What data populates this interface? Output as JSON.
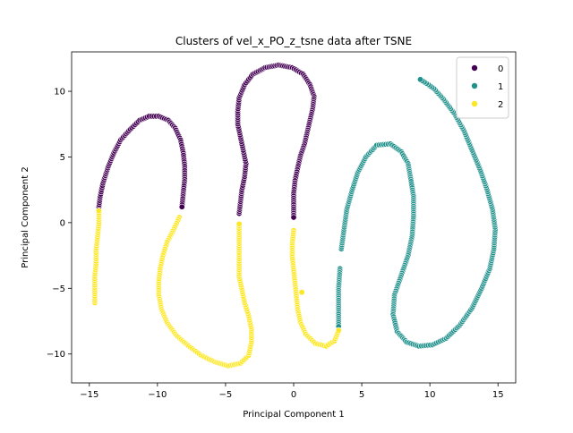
{
  "chart_data": {
    "type": "scatter",
    "title": "Clusters of vel_x_PO_z_tsne data after TSNE",
    "xlabel": "Principal Component 1",
    "ylabel": "Principal Component 2",
    "xlim": [
      -16.3,
      16.3
    ],
    "ylim": [
      -12.2,
      13.0
    ],
    "x_ticks": [
      -15,
      -10,
      -5,
      0,
      5,
      10,
      15
    ],
    "y_ticks": [
      -10,
      -5,
      0,
      5,
      10
    ],
    "grid": false,
    "legend_placement": "top-right",
    "colors": {
      "0": "#440154",
      "1": "#21918c",
      "2": "#fde725"
    },
    "series": [
      {
        "name": "0",
        "color": "#440154",
        "points": [
          [
            -14.3,
            1.2
          ],
          [
            -14.2,
            2.0
          ],
          [
            -14.0,
            3.0
          ],
          [
            -13.6,
            4.3
          ],
          [
            -13.2,
            5.3
          ],
          [
            -12.7,
            6.3
          ],
          [
            -12.0,
            7.1
          ],
          [
            -11.3,
            7.8
          ],
          [
            -10.6,
            8.1
          ],
          [
            -9.9,
            8.1
          ],
          [
            -9.2,
            7.8
          ],
          [
            -8.7,
            7.2
          ],
          [
            -8.3,
            6.3
          ],
          [
            -8.1,
            5.3
          ],
          [
            -8.0,
            4.3
          ],
          [
            -8.0,
            3.3
          ],
          [
            -8.1,
            2.3
          ],
          [
            -8.2,
            1.2
          ],
          [
            -4.0,
            0.7
          ],
          [
            -3.9,
            1.6
          ],
          [
            -3.8,
            2.5
          ],
          [
            -3.6,
            3.5
          ],
          [
            -3.5,
            4.5
          ],
          [
            -3.7,
            5.5
          ],
          [
            -3.9,
            6.5
          ],
          [
            -4.1,
            7.5
          ],
          [
            -4.1,
            8.5
          ],
          [
            -4.0,
            9.5
          ],
          [
            -3.6,
            10.5
          ],
          [
            -3.0,
            11.3
          ],
          [
            -2.1,
            11.8
          ],
          [
            -1.1,
            12.0
          ],
          [
            -0.1,
            11.8
          ],
          [
            0.7,
            11.3
          ],
          [
            1.2,
            10.5
          ],
          [
            1.5,
            9.6
          ],
          [
            1.4,
            8.7
          ],
          [
            1.2,
            7.8
          ],
          [
            1.0,
            6.9
          ],
          [
            0.8,
            6.0
          ],
          [
            0.5,
            5.1
          ],
          [
            0.3,
            4.2
          ],
          [
            0.1,
            3.2
          ],
          [
            0.0,
            2.2
          ],
          [
            0.0,
            1.2
          ],
          [
            0.0,
            0.4
          ]
        ]
      },
      {
        "name": "1",
        "color": "#21918c",
        "points": [
          [
            3.4,
            -3.5
          ],
          [
            3.3,
            -5.0
          ],
          [
            3.3,
            -6.5
          ],
          [
            3.3,
            -7.9
          ],
          [
            3.5,
            -2.0
          ],
          [
            3.7,
            -0.5
          ],
          [
            3.9,
            1.0
          ],
          [
            4.3,
            2.5
          ],
          [
            4.7,
            3.8
          ],
          [
            5.3,
            5.0
          ],
          [
            6.1,
            5.9
          ],
          [
            7.1,
            6.0
          ],
          [
            7.9,
            5.4
          ],
          [
            8.4,
            4.5
          ],
          [
            8.6,
            3.3
          ],
          [
            8.8,
            2.0
          ],
          [
            8.8,
            0.5
          ],
          [
            8.7,
            -1.0
          ],
          [
            8.4,
            -2.5
          ],
          [
            7.9,
            -4.0
          ],
          [
            7.4,
            -5.5
          ],
          [
            7.3,
            -7.0
          ],
          [
            7.6,
            -8.3
          ],
          [
            8.3,
            -9.1
          ],
          [
            9.2,
            -9.4
          ],
          [
            10.2,
            -9.3
          ],
          [
            11.2,
            -8.8
          ],
          [
            12.2,
            -7.8
          ],
          [
            13.1,
            -6.5
          ],
          [
            13.8,
            -5.0
          ],
          [
            14.4,
            -3.5
          ],
          [
            14.7,
            -2.0
          ],
          [
            14.8,
            -0.5
          ],
          [
            14.6,
            1.0
          ],
          [
            14.2,
            2.5
          ],
          [
            13.7,
            4.0
          ],
          [
            13.1,
            5.5
          ],
          [
            12.5,
            7.0
          ],
          [
            11.8,
            8.3
          ],
          [
            11.0,
            9.4
          ],
          [
            10.3,
            10.2
          ],
          [
            9.9,
            10.5
          ],
          [
            9.3,
            10.9
          ]
        ]
      },
      {
        "name": "2",
        "color": "#fde725",
        "points": [
          [
            -14.6,
            -6.1
          ],
          [
            -14.6,
            -5.1
          ],
          [
            -14.6,
            -4.1
          ],
          [
            -14.5,
            -3.1
          ],
          [
            -14.5,
            -2.1
          ],
          [
            -14.4,
            -1.1
          ],
          [
            -14.3,
            -0.1
          ],
          [
            -14.3,
            0.9
          ],
          [
            -8.4,
            0.4
          ],
          [
            -8.8,
            -0.5
          ],
          [
            -9.3,
            -1.5
          ],
          [
            -9.6,
            -2.5
          ],
          [
            -9.8,
            -3.5
          ],
          [
            -9.9,
            -4.5
          ],
          [
            -9.9,
            -5.5
          ],
          [
            -9.7,
            -6.6
          ],
          [
            -9.3,
            -7.6
          ],
          [
            -8.6,
            -8.6
          ],
          [
            -7.7,
            -9.4
          ],
          [
            -6.8,
            -10.1
          ],
          [
            -5.8,
            -10.6
          ],
          [
            -4.8,
            -10.9
          ],
          [
            -3.9,
            -10.7
          ],
          [
            -3.3,
            -10.1
          ],
          [
            -3.1,
            -9.1
          ],
          [
            -3.1,
            -8.1
          ],
          [
            -3.3,
            -7.1
          ],
          [
            -3.6,
            -6.1
          ],
          [
            -3.8,
            -5.1
          ],
          [
            -4.0,
            -4.1
          ],
          [
            -4.0,
            -3.1
          ],
          [
            -4.0,
            -2.1
          ],
          [
            -4.0,
            -1.1
          ],
          [
            -4.0,
            -0.1
          ],
          [
            0.0,
            -0.6
          ],
          [
            -0.1,
            -1.6
          ],
          [
            -0.1,
            -2.6
          ],
          [
            0.0,
            -3.6
          ],
          [
            0.1,
            -4.6
          ],
          [
            0.2,
            -5.6
          ],
          [
            0.3,
            -6.6
          ],
          [
            0.5,
            -7.6
          ],
          [
            0.9,
            -8.5
          ],
          [
            1.6,
            -9.2
          ],
          [
            2.4,
            -9.4
          ],
          [
            3.0,
            -9.0
          ],
          [
            3.3,
            -8.2
          ],
          [
            0.6,
            -5.3
          ]
        ]
      }
    ]
  }
}
